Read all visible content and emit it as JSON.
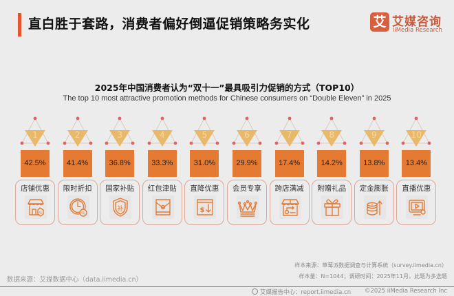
{
  "header": {
    "title": "直白胜于套路，消费者偏好倒逼促销策略务实化",
    "accent_color": "#e4572e",
    "brand": {
      "logo_glyph": "艾",
      "name_cn": "艾媒咨询",
      "name_en": "iiMedia Research",
      "color": "#d9603e"
    }
  },
  "chart_data": {
    "type": "bar",
    "title": "2025年中国消费者认为“双十一”最具吸引力促销的方式（TOP10）",
    "subtitle": "The top 10 most attractive promotion methods for Chinese consumers on “Double Eleven” in 2025",
    "categories": [
      "店铺优惠",
      "限时折扣",
      "国家补贴",
      "红包津贴",
      "直降优惠",
      "会员专享",
      "跨店满减",
      "附赠礼品",
      "定金膨胀",
      "直播优惠"
    ],
    "ranks": [
      "1",
      "2",
      "3",
      "4",
      "5",
      "6",
      "7",
      "8",
      "9",
      "10"
    ],
    "values": [
      42.5,
      41.4,
      36.8,
      33.3,
      31.0,
      29.9,
      17.4,
      14.2,
      13.8,
      13.4
    ],
    "value_labels": [
      "42.5%",
      "41.4%",
      "36.8%",
      "33.3%",
      "31.0%",
      "29.9%",
      "17.4%",
      "14.2%",
      "13.8%",
      "13.4%"
    ],
    "unit": "%",
    "xlabel": "",
    "ylabel": "",
    "colors": {
      "value_box": "#e57a32",
      "rank_triangle": "#e8b96a",
      "triangle_dots": "#dc6464",
      "card_border": "#d9a898",
      "icon_stroke": "#e57a32"
    }
  },
  "items": [
    {
      "rank": "1",
      "value": "42.5%",
      "label": "店铺优惠",
      "icon": "storefront-discount-tag-icon"
    },
    {
      "rank": "2",
      "value": "41.4%",
      "label": "限时折扣",
      "icon": "clock-percent-icon"
    },
    {
      "rank": "3",
      "value": "36.8%",
      "label": "国家补贴",
      "icon": "shield-subsidy-icon",
      "icon_glyph": "补"
    },
    {
      "rank": "4",
      "value": "33.3%",
      "label": "红包津贴",
      "icon": "red-envelope-icon"
    },
    {
      "rank": "5",
      "value": "31.0%",
      "label": "直降优惠",
      "icon": "price-drop-dollar-icon",
      "icon_glyph": "$↓"
    },
    {
      "rank": "6",
      "value": "29.9%",
      "label": "会员专享",
      "icon": "crown-icon"
    },
    {
      "rank": "7",
      "value": "17.4%",
      "label": "跨店满减",
      "icon": "multi-store-icon"
    },
    {
      "rank": "8",
      "value": "14.2%",
      "label": "附赠礼品",
      "icon": "gift-box-icon"
    },
    {
      "rank": "9",
      "value": "13.8%",
      "label": "定金膨胀",
      "icon": "coins-arrow-up-icon"
    },
    {
      "rank": "10",
      "value": "13.4%",
      "label": "直播优惠",
      "icon": "live-stream-play-icon"
    }
  ],
  "footer": {
    "data_source": "数据来源：艾媒数据中心（data.iimedia.cn）",
    "sample_source": "样本来源：草莓派数据调查与计算系统（survey.iimedia.cn）",
    "sample_size": "样本量：N=1044；调研时间：2025年11月，此题为多选题",
    "report_center": "艾媒报告中心：report.iimedia.cn",
    "copyright": "©2025  iiMedia Research  Inc"
  }
}
